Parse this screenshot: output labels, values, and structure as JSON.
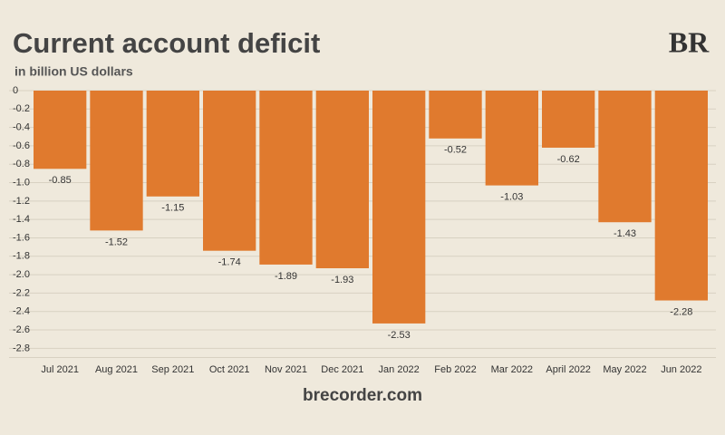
{
  "chart_data": {
    "type": "bar",
    "title": "Current account deficit",
    "subtitle": "in billion US dollars",
    "logo": "BR",
    "source": "brecorder.com",
    "categories": [
      "Jul 2021",
      "Aug 2021",
      "Sep 2021",
      "Oct 2021",
      "Nov 2021",
      "Dec 2021",
      "Jan 2022",
      "Feb 2022",
      "Mar 2022",
      "April 2022",
      "May 2022",
      "Jun 2022"
    ],
    "values": [
      -0.85,
      -1.52,
      -1.15,
      -1.74,
      -1.89,
      -1.93,
      -2.53,
      -0.52,
      -1.03,
      -0.62,
      -1.43,
      -2.28
    ],
    "color": "#e07a2e",
    "ylim": [
      -2.9,
      0
    ],
    "yticks": [
      0,
      -0.2,
      -0.4,
      -0.6,
      -0.8,
      {
        "value": -1.0,
        "label": "-1.0"
      },
      -1.2,
      -1.4,
      -1.6,
      -1.8,
      {
        "value": -2.0,
        "label": "-2.0"
      },
      -2.2,
      -2.4,
      -2.6,
      -2.8
    ],
    "grid": true
  }
}
